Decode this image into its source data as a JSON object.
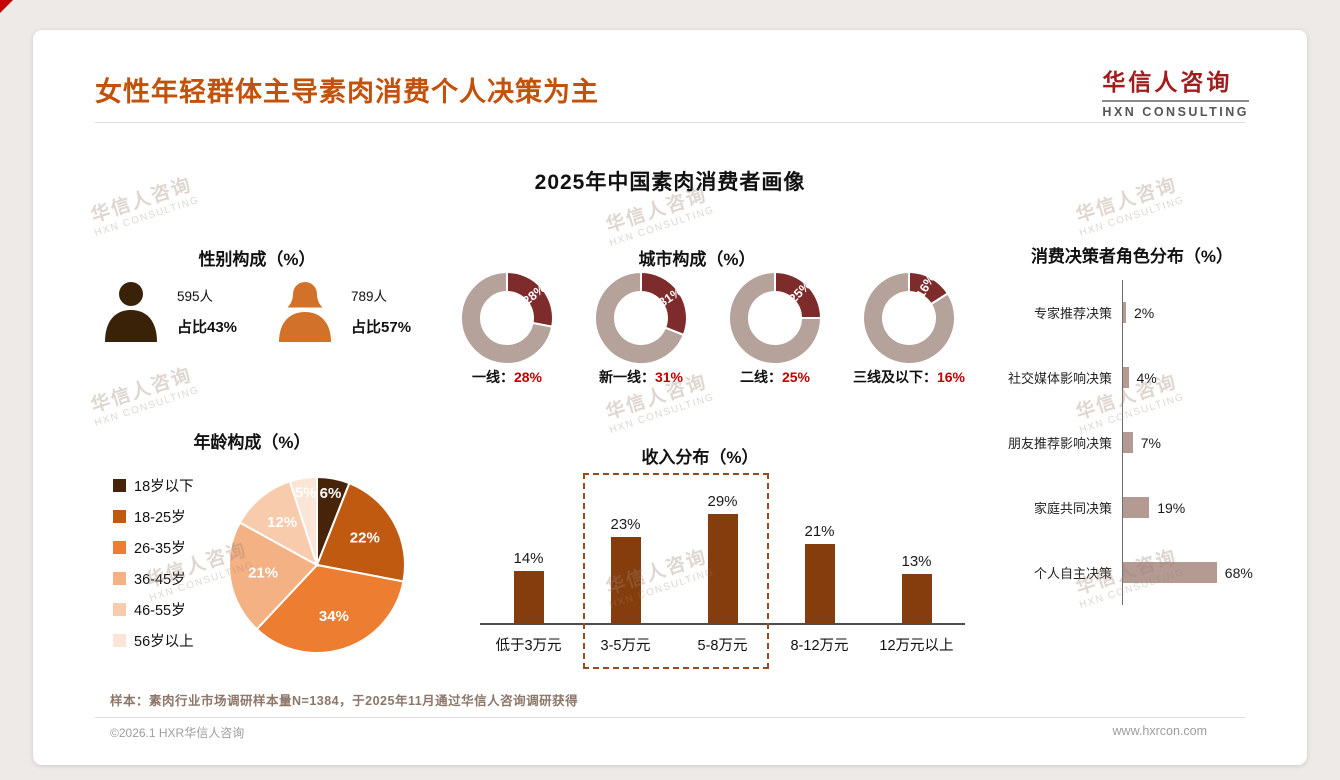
{
  "page": {
    "title": "女性年轻群体主导素肉消费个人决策为主",
    "subtitle": "2025年中国素肉消费者画像",
    "footnote": "样本：素肉行业市场调研样本量N=1384，于2025年11月通过华信人咨询调研获得",
    "footer_left": "©2026.1 HXR华信人咨询",
    "footer_right": "www.hxrcon.com"
  },
  "logo": {
    "cn": "华信人咨询",
    "en": "HXN CONSULTING"
  },
  "watermark": {
    "cn": "华信人咨询",
    "en": "HXN CONSULTING"
  },
  "colors": {
    "title_orange": "#c2520b",
    "donut_value": "#7e2b2b",
    "donut_rest": "#b5a29b",
    "value_red": "#c00000",
    "income_bar": "#853d0d",
    "decision_bar": "#b39a93",
    "male_icon": "#3a2208",
    "female_icon": "#d2722a"
  },
  "chart_data": [
    {
      "id": "gender",
      "type": "pictogram",
      "title": "性别构成（%）",
      "items": [
        {
          "label": "男性",
          "count": "595人",
          "share": "占比43%"
        },
        {
          "label": "女性",
          "count": "789人",
          "share": "占比57%"
        }
      ]
    },
    {
      "id": "city",
      "type": "pie",
      "variant": "donut-multiples",
      "title": "城市构成（%）",
      "unit": "%",
      "series": [
        {
          "name": "一线",
          "value": 28
        },
        {
          "name": "新一线",
          "value": 31
        },
        {
          "name": "二线",
          "value": 25
        },
        {
          "name": "三线及以下",
          "value": 16
        }
      ]
    },
    {
      "id": "decision",
      "type": "bar",
      "orientation": "horizontal",
      "title": "消费决策者角色分布（%）",
      "unit": "%",
      "categories": [
        "专家推荐决策",
        "社交媒体影响决策",
        "朋友推荐影响决策",
        "家庭共同决策",
        "个人自主决策"
      ],
      "values": [
        2,
        4,
        7,
        19,
        68
      ]
    },
    {
      "id": "age",
      "type": "pie",
      "title": "年龄构成（%）",
      "unit": "%",
      "categories": [
        "18岁以下",
        "18-25岁",
        "26-35岁",
        "36-45岁",
        "46-55岁",
        "56岁以上"
      ],
      "values": [
        6,
        22,
        34,
        21,
        12,
        5
      ],
      "colors": [
        "#47230a",
        "#c05a11",
        "#ed7d31",
        "#f4b183",
        "#f8cbad",
        "#fbe5d6"
      ]
    },
    {
      "id": "income",
      "type": "bar",
      "title": "收入分布（%）",
      "unit": "%",
      "categories": [
        "低于3万元",
        "3-5万元",
        "5-8万元",
        "8-12万元",
        "12万元以上"
      ],
      "values": [
        14,
        23,
        29,
        21,
        13
      ],
      "highlight": {
        "from": "3-5万元",
        "to": "5-8万元"
      }
    }
  ]
}
